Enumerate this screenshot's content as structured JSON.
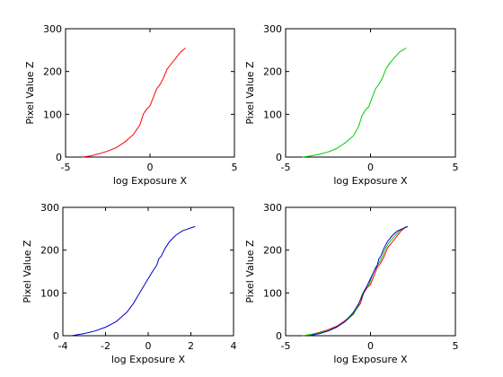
{
  "chart_data": [
    {
      "type": "line",
      "xlabel": "log Exposure X",
      "ylabel": "Pixel Value Z",
      "xlim": [
        -5,
        5
      ],
      "ylim": [
        0,
        300
      ],
      "xticks": [
        -5,
        0,
        5
      ],
      "yticks": [
        0,
        100,
        200,
        300
      ],
      "grid": false,
      "series": [
        {
          "color": "#ff0000",
          "x": [
            -4.0,
            -3.5,
            -3.0,
            -2.5,
            -2.0,
            -1.5,
            -1.0,
            -0.6,
            -0.4,
            -0.2,
            0.0,
            0.2,
            0.4,
            0.6,
            0.8,
            1.0,
            1.2,
            1.5,
            1.8,
            2.1
          ],
          "y": [
            0,
            3,
            8,
            14,
            22,
            35,
            52,
            75,
            100,
            112,
            120,
            140,
            160,
            170,
            185,
            205,
            215,
            230,
            245,
            255
          ]
        }
      ]
    },
    {
      "type": "line",
      "xlabel": "log Exposure X",
      "ylabel": "Pixel Value Z",
      "xlim": [
        -5,
        5
      ],
      "ylim": [
        0,
        300
      ],
      "xticks": [
        -5,
        0,
        5
      ],
      "yticks": [
        0,
        100,
        200,
        300
      ],
      "grid": false,
      "series": [
        {
          "color": "#00cc00",
          "x": [
            -4.0,
            -3.5,
            -3.0,
            -2.5,
            -2.0,
            -1.5,
            -1.0,
            -0.7,
            -0.5,
            -0.3,
            -0.1,
            0.1,
            0.3,
            0.5,
            0.7,
            0.9,
            1.1,
            1.4,
            1.7,
            2.1
          ],
          "y": [
            0,
            3,
            7,
            12,
            20,
            33,
            50,
            72,
            97,
            110,
            118,
            140,
            160,
            170,
            185,
            205,
            218,
            232,
            245,
            255
          ]
        }
      ]
    },
    {
      "type": "line",
      "xlabel": "log Exposure X",
      "ylabel": "Pixel Value Z",
      "xlim": [
        -4,
        4
      ],
      "ylim": [
        0,
        300
      ],
      "xticks": [
        -4,
        -2,
        0,
        2,
        4
      ],
      "yticks": [
        0,
        100,
        200,
        300
      ],
      "grid": false,
      "series": [
        {
          "color": "#0000cc",
          "x": [
            -3.6,
            -3.0,
            -2.5,
            -2.0,
            -1.5,
            -1.0,
            -0.7,
            -0.4,
            -0.1,
            0.2,
            0.4,
            0.5,
            0.6,
            0.8,
            1.0,
            1.3,
            1.6,
            2.0,
            2.2
          ],
          "y": [
            0,
            5,
            11,
            20,
            33,
            55,
            75,
            100,
            125,
            150,
            165,
            180,
            185,
            205,
            220,
            235,
            245,
            252,
            255
          ]
        }
      ]
    },
    {
      "type": "line",
      "xlabel": "log Exposure X",
      "ylabel": "Pixel Value Z",
      "xlim": [
        -5,
        5
      ],
      "ylim": [
        0,
        300
      ],
      "xticks": [
        -5,
        0,
        5
      ],
      "yticks": [
        0,
        100,
        200,
        300
      ],
      "grid": false,
      "series": [
        {
          "color": "#ff0000",
          "x": [
            -4.0,
            -3.5,
            -3.0,
            -2.5,
            -2.0,
            -1.5,
            -1.0,
            -0.6,
            -0.4,
            -0.2,
            0.0,
            0.2,
            0.4,
            0.6,
            0.8,
            1.0,
            1.2,
            1.5,
            1.8,
            2.1
          ],
          "y": [
            0,
            3,
            8,
            14,
            22,
            35,
            52,
            75,
            100,
            112,
            120,
            140,
            160,
            170,
            185,
            205,
            215,
            230,
            245,
            255
          ]
        },
        {
          "color": "#00cc00",
          "x": [
            -4.0,
            -3.5,
            -3.0,
            -2.5,
            -2.0,
            -1.5,
            -1.0,
            -0.7,
            -0.5,
            -0.3,
            -0.1,
            0.1,
            0.3,
            0.5,
            0.7,
            0.9,
            1.1,
            1.4,
            1.7,
            2.1
          ],
          "y": [
            0,
            3,
            7,
            12,
            20,
            33,
            50,
            72,
            97,
            110,
            118,
            140,
            160,
            170,
            185,
            205,
            218,
            232,
            245,
            255
          ]
        },
        {
          "color": "#0000cc",
          "x": [
            -3.6,
            -3.0,
            -2.5,
            -2.0,
            -1.5,
            -1.0,
            -0.7,
            -0.4,
            -0.1,
            0.2,
            0.4,
            0.5,
            0.6,
            0.8,
            1.0,
            1.3,
            1.6,
            2.0,
            2.2
          ],
          "y": [
            0,
            5,
            11,
            20,
            33,
            55,
            75,
            100,
            125,
            150,
            165,
            180,
            185,
            205,
            220,
            235,
            245,
            252,
            255
          ]
        }
      ]
    }
  ]
}
